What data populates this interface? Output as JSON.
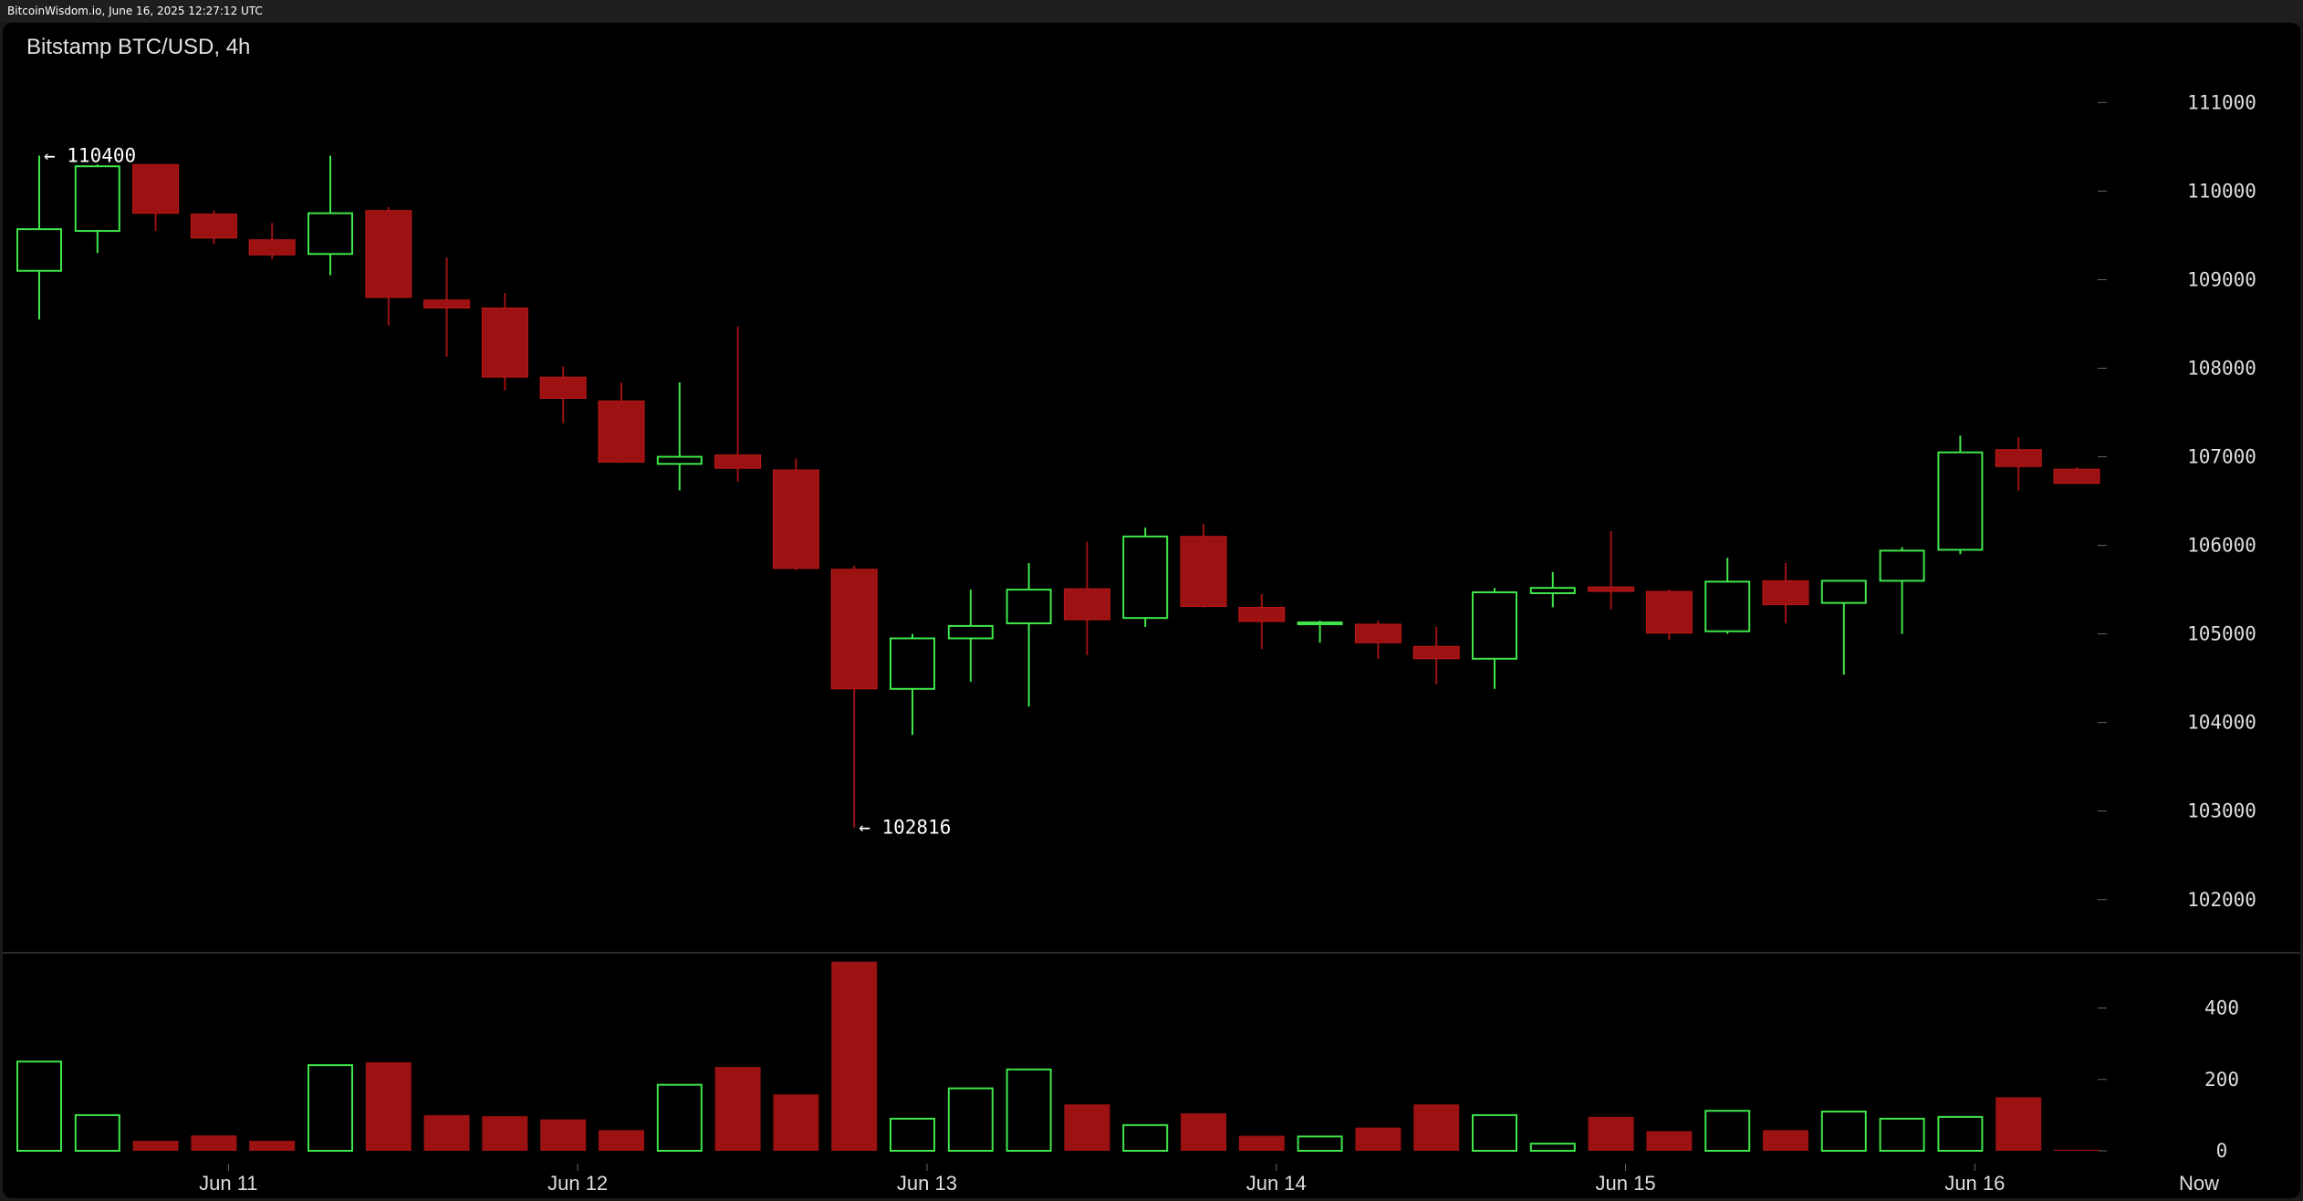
{
  "header": {
    "source_text": "BitcoinWisdom.io, June 16, 2025 12:27:12 UTC"
  },
  "chart_data": {
    "type": "candlestick",
    "title": "Bitstamp BTC/USD, 4h",
    "colors": {
      "up": "#3fe64a",
      "down": "#9c1111",
      "background": "#000000",
      "text": "#dedede",
      "divider": "#555555"
    },
    "price_axis": {
      "ylim": [
        101400,
        111900
      ],
      "ticks": [
        102000,
        103000,
        104000,
        105000,
        106000,
        107000,
        108000,
        109000,
        110000,
        111000
      ]
    },
    "volume_axis": {
      "ylim": [
        0,
        560
      ],
      "ticks": [
        0,
        200,
        400
      ]
    },
    "x_axis": {
      "ticks": [
        {
          "label": "Jun 11",
          "index": 3.25
        },
        {
          "label": "Jun 12",
          "index": 9.25
        },
        {
          "label": "Jun 13",
          "index": 15.25
        },
        {
          "label": "Jun 14",
          "index": 21.25
        },
        {
          "label": "Jun 15",
          "index": 27.25
        },
        {
          "label": "Jun 16",
          "index": 33.25
        },
        {
          "label": "Now",
          "index": 37.1
        }
      ]
    },
    "annotations": [
      {
        "text": "← 110400",
        "index": 0,
        "price": 110400
      },
      {
        "text": "← 102816",
        "index": 14,
        "price": 102816
      }
    ],
    "candles": [
      {
        "o": 109100,
        "h": 110400,
        "l": 108550,
        "c": 109570,
        "v": 250
      },
      {
        "o": 109550,
        "h": 110300,
        "l": 109300,
        "c": 110280,
        "v": 100
      },
      {
        "o": 110300,
        "h": 110300,
        "l": 109550,
        "c": 109750,
        "v": 28
      },
      {
        "o": 109740,
        "h": 109780,
        "l": 109400,
        "c": 109470,
        "v": 43
      },
      {
        "o": 109450,
        "h": 109640,
        "l": 109230,
        "c": 109280,
        "v": 28
      },
      {
        "o": 109290,
        "h": 110400,
        "l": 109050,
        "c": 109750,
        "v": 240
      },
      {
        "o": 109780,
        "h": 109820,
        "l": 108480,
        "c": 108800,
        "v": 248
      },
      {
        "o": 108770,
        "h": 109250,
        "l": 108130,
        "c": 108680,
        "v": 100
      },
      {
        "o": 108680,
        "h": 108850,
        "l": 107750,
        "c": 107900,
        "v": 97
      },
      {
        "o": 107900,
        "h": 108020,
        "l": 107380,
        "c": 107660,
        "v": 88
      },
      {
        "o": 107630,
        "h": 107840,
        "l": 106930,
        "c": 106940,
        "v": 58
      },
      {
        "o": 106920,
        "h": 107840,
        "l": 106620,
        "c": 107000,
        "v": 185
      },
      {
        "o": 107020,
        "h": 108470,
        "l": 106720,
        "c": 106870,
        "v": 235
      },
      {
        "o": 106850,
        "h": 106980,
        "l": 105720,
        "c": 105740,
        "v": 158
      },
      {
        "o": 105730,
        "h": 105770,
        "l": 102816,
        "c": 104380,
        "v": 530
      },
      {
        "o": 104380,
        "h": 105000,
        "l": 103860,
        "c": 104950,
        "v": 90
      },
      {
        "o": 104950,
        "h": 105500,
        "l": 104460,
        "c": 105090,
        "v": 175
      },
      {
        "o": 105120,
        "h": 105800,
        "l": 104180,
        "c": 105500,
        "v": 228
      },
      {
        "o": 105510,
        "h": 106040,
        "l": 104760,
        "c": 105160,
        "v": 130
      },
      {
        "o": 105180,
        "h": 106200,
        "l": 105080,
        "c": 106100,
        "v": 72
      },
      {
        "o": 106100,
        "h": 106240,
        "l": 105300,
        "c": 105310,
        "v": 105
      },
      {
        "o": 105300,
        "h": 105450,
        "l": 104830,
        "c": 105140,
        "v": 42
      },
      {
        "o": 105110,
        "h": 105150,
        "l": 104900,
        "c": 105130,
        "v": 40
      },
      {
        "o": 105110,
        "h": 105150,
        "l": 104720,
        "c": 104900,
        "v": 65
      },
      {
        "o": 104860,
        "h": 105080,
        "l": 104430,
        "c": 104720,
        "v": 130
      },
      {
        "o": 104720,
        "h": 105520,
        "l": 104380,
        "c": 105470,
        "v": 100
      },
      {
        "o": 105460,
        "h": 105700,
        "l": 105300,
        "c": 105520,
        "v": 20
      },
      {
        "o": 105530,
        "h": 106160,
        "l": 105280,
        "c": 105480,
        "v": 95
      },
      {
        "o": 105480,
        "h": 105500,
        "l": 104930,
        "c": 105010,
        "v": 55
      },
      {
        "o": 105030,
        "h": 105860,
        "l": 105000,
        "c": 105590,
        "v": 112
      },
      {
        "o": 105600,
        "h": 105800,
        "l": 105120,
        "c": 105330,
        "v": 58
      },
      {
        "o": 105350,
        "h": 105600,
        "l": 104540,
        "c": 105600,
        "v": 110
      },
      {
        "o": 105600,
        "h": 105980,
        "l": 105000,
        "c": 105940,
        "v": 90
      },
      {
        "o": 105950,
        "h": 107240,
        "l": 105900,
        "c": 107050,
        "v": 95
      },
      {
        "o": 107080,
        "h": 107220,
        "l": 106620,
        "c": 106890,
        "v": 150
      },
      {
        "o": 106860,
        "h": 106880,
        "l": 106700,
        "c": 106700,
        "v": 3
      }
    ]
  }
}
